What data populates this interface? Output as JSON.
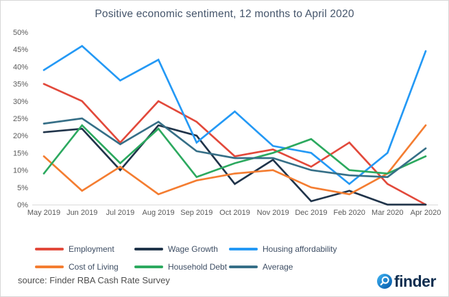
{
  "source": "source: Finder RBA Cash Rate Survey",
  "logo": {
    "text": "finder",
    "icon": "magnifier-icon",
    "circle_color": "#1473c5",
    "text_color": "#0e2c4e"
  },
  "colors": {
    "title": "#44546a",
    "axis_labels": "#595959",
    "axis_line": "#d9d9d9"
  },
  "chart_data": {
    "type": "line",
    "title": "Positive economic sentiment, 12 months to April 2020",
    "categories": [
      "May 2019",
      "Jun 2019",
      "Jul 2019",
      "Aug 2019",
      "Sep 2019",
      "Oct 2019",
      "Nov 2019",
      "Dec 2019",
      "Feb 2020",
      "Mar 2020",
      "Apr 2020"
    ],
    "series": [
      {
        "name": "Employment",
        "color": "#e2493b",
        "values": [
          35,
          30,
          18,
          30,
          24,
          14,
          16,
          11,
          18,
          6,
          0
        ]
      },
      {
        "name": "Wage Growth",
        "color": "#20344a",
        "values": [
          21,
          22,
          10,
          23,
          20,
          6,
          13,
          1,
          4,
          0,
          0
        ]
      },
      {
        "name": "Housing affordability",
        "color": "#2499f5",
        "values": [
          39,
          46,
          36,
          42,
          18,
          27,
          17,
          15,
          6,
          15,
          44.5
        ]
      },
      {
        "name": "Cost of Living",
        "color": "#f47d31",
        "values": [
          14,
          4,
          11,
          3,
          7,
          9,
          10,
          5,
          3,
          9,
          23
        ]
      },
      {
        "name": "Household Debt",
        "color": "#2ca95f",
        "values": [
          9,
          23,
          12,
          22,
          8,
          12,
          15,
          19,
          10,
          9,
          14
        ]
      },
      {
        "name": "Average",
        "color": "#366f87",
        "values": [
          23.5,
          25,
          17.5,
          24,
          15.5,
          13.5,
          13.5,
          10,
          8.5,
          8,
          16.3
        ]
      }
    ],
    "xlabel": "",
    "ylabel": "",
    "ylim": [
      0,
      50
    ],
    "yticks": [
      "50%",
      "45%",
      "40%",
      "35%",
      "30%",
      "25%",
      "20%",
      "15%",
      "10%",
      "5%",
      "0%"
    ],
    "grid": false,
    "legend_position": "bottom"
  }
}
